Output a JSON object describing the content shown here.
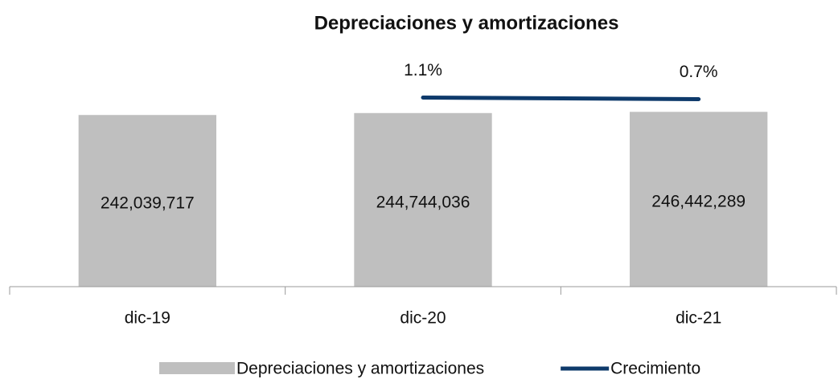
{
  "chart_data": {
    "type": "bar",
    "title": "Depreciaciones y amortizaciones",
    "categories": [
      "dic-19",
      "dic-20",
      "dic-21"
    ],
    "series": [
      {
        "name": "Depreciaciones y amortizaciones",
        "type": "bar",
        "color": "#bfbfbf",
        "values": [
          242039717,
          244744036,
          246442289
        ],
        "value_labels": [
          "242,039,717",
          "244,744,036",
          "246,442,289"
        ]
      },
      {
        "name": "Crecimiento",
        "type": "line",
        "axis": "y2",
        "color": "#0e3a6b",
        "values": [
          null,
          1.1,
          0.7
        ],
        "value_labels": [
          null,
          "1.1%",
          "0.7%"
        ]
      }
    ],
    "ylim": [
      0,
      300000000
    ],
    "y2lim": [
      -46,
      7
    ],
    "legend": "bottom"
  }
}
